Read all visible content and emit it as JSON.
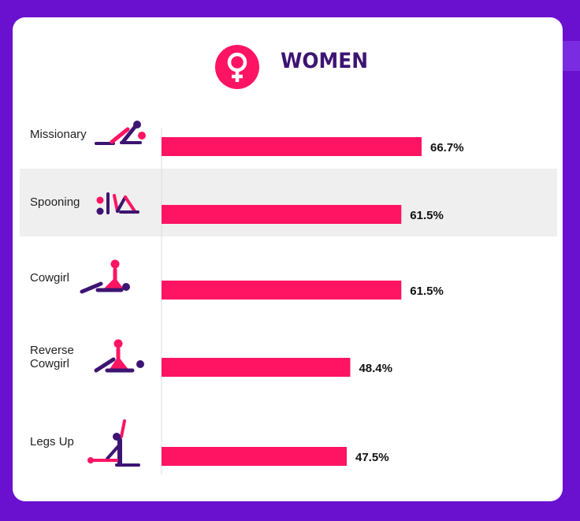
{
  "header": {
    "title": "WOMEN",
    "icon": "female-symbol-icon",
    "icon_color": "#ff1464",
    "title_color": "#3d1472"
  },
  "colors": {
    "frame": "#6a11cf",
    "bar": "#ff1464",
    "icon_primary": "#3d1472",
    "icon_accent": "#ff1464",
    "highlight_row": "#efefef"
  },
  "chart_data": {
    "type": "bar",
    "orientation": "horizontal",
    "title": "WOMEN",
    "categories": [
      "Missionary",
      "Spooning",
      "Cowgirl",
      "Reverse Cowgirl",
      "Legs Up"
    ],
    "values": [
      66.7,
      61.5,
      61.5,
      48.4,
      47.5
    ],
    "value_labels": [
      "66.7%",
      "61.5%",
      "61.5%",
      "48.4%",
      "47.5%"
    ],
    "icons": [
      "missionary-pose-icon",
      "spooning-pose-icon",
      "cowgirl-pose-icon",
      "reverse-cowgirl-pose-icon",
      "legs-up-pose-icon"
    ],
    "highlighted_category": "Spooning",
    "xlabel": "",
    "ylabel": "",
    "xlim": [
      0,
      100
    ],
    "grid": false,
    "legend": "none"
  }
}
